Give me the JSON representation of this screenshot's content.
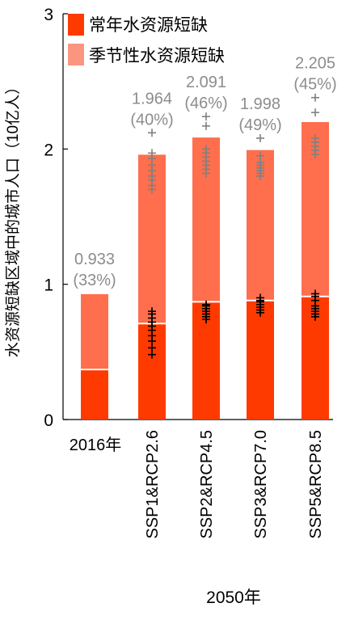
{
  "chart_data": {
    "type": "bar",
    "stacked": true,
    "ylabel": "水资源短缺区域中的城市人口（10亿人）",
    "xlabel": "2050年",
    "ylim": [
      0,
      3
    ],
    "yticks": [
      0,
      1,
      2,
      3
    ],
    "categories": [
      "2016年",
      "SSP1&RCP2.6",
      "SSP2&RCP4.5",
      "SSP3&RCP7.0",
      "SSP5&RCP8.5"
    ],
    "series": [
      {
        "name": "常年水资源短缺",
        "values": [
          0.37,
          0.71,
          0.87,
          0.88,
          0.91
        ]
      },
      {
        "name": "季节性水资源短缺",
        "values": [
          0.563,
          1.254,
          1.221,
          1.118,
          1.295
        ]
      }
    ],
    "totals": [
      "0.933",
      "1.964",
      "2.091",
      "1.998",
      "2.205"
    ],
    "percents": [
      "(33%)",
      "(40%)",
      "(46%)",
      "(49%)",
      "(45%)"
    ],
    "colors": {
      "perennial": "#ff3a00",
      "seasonal": "#ff6e4d",
      "legend_seasonal": "#fa9680",
      "label": "#8c8c8c"
    },
    "legend_placement": "top-left",
    "scatter_perennial": [
      [],
      [
        0.48,
        0.53,
        0.58,
        0.62,
        0.66,
        0.69,
        0.72,
        0.75,
        0.78,
        0.8
      ],
      [
        0.74,
        0.76,
        0.78,
        0.8,
        0.82,
        0.84,
        0.85
      ],
      [
        0.79,
        0.81,
        0.83,
        0.85,
        0.87,
        0.88,
        0.9
      ],
      [
        0.76,
        0.78,
        0.8,
        0.82,
        0.84,
        0.88,
        0.91,
        0.93
      ]
    ],
    "scatter_total": [
      [],
      [
        1.7,
        1.73,
        1.77,
        1.8,
        1.84,
        1.88,
        1.93,
        1.97,
        2.12
      ],
      [
        1.82,
        1.85,
        1.88,
        1.91,
        1.94,
        1.97,
        2.0,
        2.17,
        2.24
      ],
      [
        1.8,
        1.82,
        1.84,
        1.86,
        1.88,
        1.9,
        1.95,
        2.08
      ],
      [
        1.96,
        1.99,
        2.02,
        2.05,
        2.08,
        2.27,
        2.38
      ]
    ]
  }
}
